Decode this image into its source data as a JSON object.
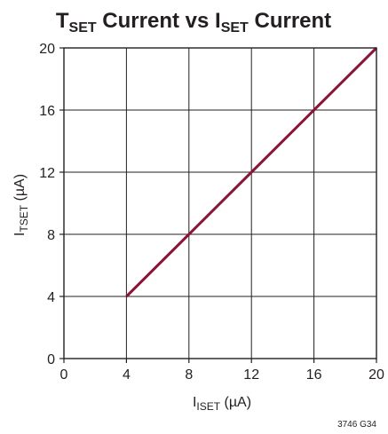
{
  "chart_data": {
    "type": "line",
    "title": {
      "main_prefix": "T",
      "main_sub": "SET",
      "middle": " Current vs I",
      "second_sub": "SET",
      "suffix": " Current"
    },
    "xlabel": {
      "prefix": "I",
      "sub": "ISET",
      "suffix": " (µA)"
    },
    "ylabel": {
      "prefix": "I",
      "sub": "TSET",
      "suffix": " (µA)"
    },
    "xlim": [
      0,
      20
    ],
    "ylim": [
      0,
      20
    ],
    "x_ticks": [
      0,
      4,
      8,
      12,
      16,
      20
    ],
    "y_ticks": [
      0,
      4,
      8,
      12,
      16,
      20
    ],
    "grid": true,
    "series": [
      {
        "color": "#8b1538",
        "x": [
          4,
          8,
          12,
          16,
          20
        ],
        "y": [
          4,
          8,
          12,
          16,
          20
        ]
      }
    ],
    "figure_id": "3746 G34"
  }
}
